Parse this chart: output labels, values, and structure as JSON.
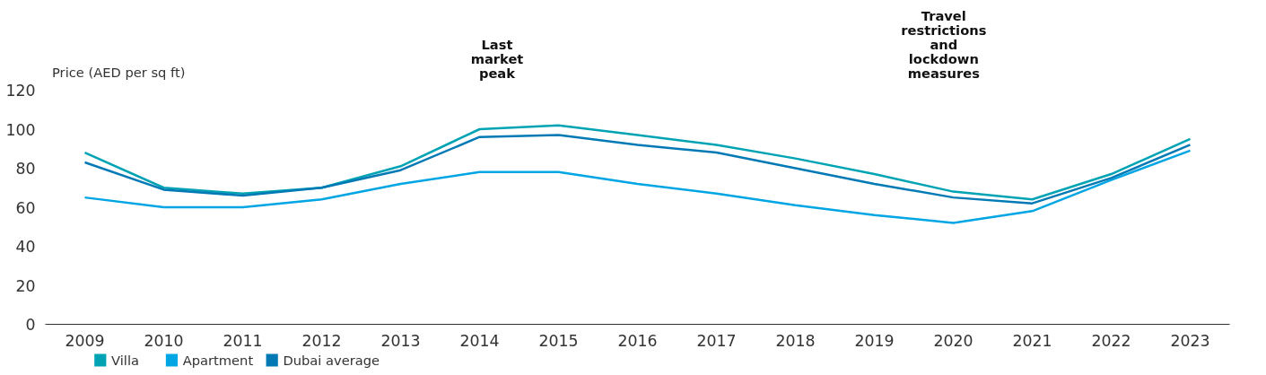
{
  "chart_data": {
    "type": "line",
    "ylabel": "Price (AED per sq ft)",
    "categories": [
      "2009",
      "2010",
      "2011",
      "2012",
      "2013",
      "2014",
      "2015",
      "2016",
      "2017",
      "2018",
      "2019",
      "2020",
      "2021",
      "2022",
      "2023"
    ],
    "series": [
      {
        "name": "Villa",
        "color": "#00a3b4",
        "values": [
          88,
          70,
          67,
          70,
          81,
          100,
          102,
          97,
          92,
          85,
          77,
          68,
          64,
          77,
          95
        ]
      },
      {
        "name": "Apartment",
        "color": "#00a5e3",
        "values": [
          65,
          60,
          60,
          64,
          72,
          78,
          78,
          72,
          67,
          61,
          56,
          52,
          58,
          74,
          89
        ]
      },
      {
        "name": "Dubai average",
        "color": "#0079b5",
        "values": [
          83,
          69,
          66,
          70,
          79,
          96,
          97,
          92,
          88,
          80,
          72,
          65,
          62,
          75,
          92
        ]
      }
    ],
    "ylim": [
      0,
      120
    ],
    "yticks": [
      0,
      20,
      40,
      60,
      80,
      100,
      120
    ],
    "grid": false,
    "legend": "bottom left",
    "marker": "none",
    "line_style": "solid",
    "annotations": [
      "Last\nmarket\npeak",
      "Travel\nrestrictions\nand\nlockdown\nmeasures"
    ]
  }
}
